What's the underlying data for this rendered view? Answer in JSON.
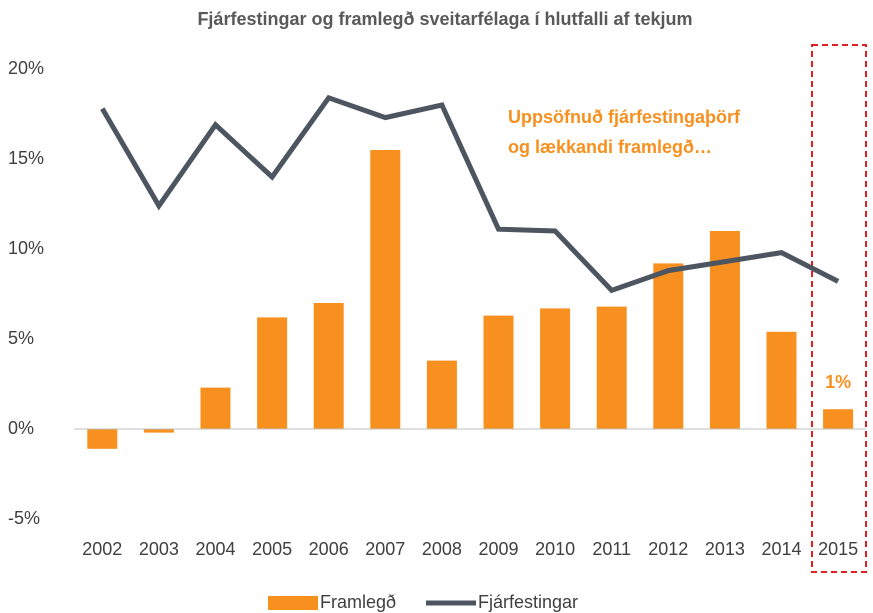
{
  "chart_data": {
    "type": "bar_line",
    "title": "Fjárfestingar og framlegð sveitarfélaga í hlutfalli af tekjum",
    "categories": [
      "2002",
      "2003",
      "2004",
      "2005",
      "2006",
      "2007",
      "2008",
      "2009",
      "2010",
      "2011",
      "2012",
      "2013",
      "2014",
      "2015"
    ],
    "series": [
      {
        "name": "Framlegð",
        "type": "bar",
        "color": "#f7901e",
        "values": [
          -1.1,
          -0.2,
          2.3,
          6.2,
          7.0,
          15.5,
          3.8,
          6.3,
          6.7,
          6.8,
          9.2,
          11.0,
          5.4,
          1.1
        ],
        "value_labels": [
          null,
          null,
          null,
          null,
          null,
          null,
          null,
          null,
          null,
          null,
          null,
          null,
          null,
          "1%"
        ]
      },
      {
        "name": "Fjárfestingar",
        "type": "line",
        "color": "#4d5561",
        "values": [
          17.8,
          12.4,
          16.9,
          14.0,
          18.4,
          17.3,
          18.0,
          11.1,
          11.0,
          7.7,
          8.8,
          9.3,
          9.8,
          8.2
        ]
      }
    ],
    "annotations": [
      "Uppsöfnuð fjárfestingaþörf",
      "og lækkandi framlegð…"
    ],
    "ylim": [
      -5,
      20
    ],
    "yticks": [
      {
        "value": -5,
        "label": "-5%"
      },
      {
        "value": 0,
        "label": "0%"
      },
      {
        "value": 5,
        "label": "5%"
      },
      {
        "value": 10,
        "label": "10%"
      },
      {
        "value": 15,
        "label": "15%"
      },
      {
        "value": 20,
        "label": "20%"
      }
    ],
    "grid": false,
    "legend": "bottom"
  }
}
